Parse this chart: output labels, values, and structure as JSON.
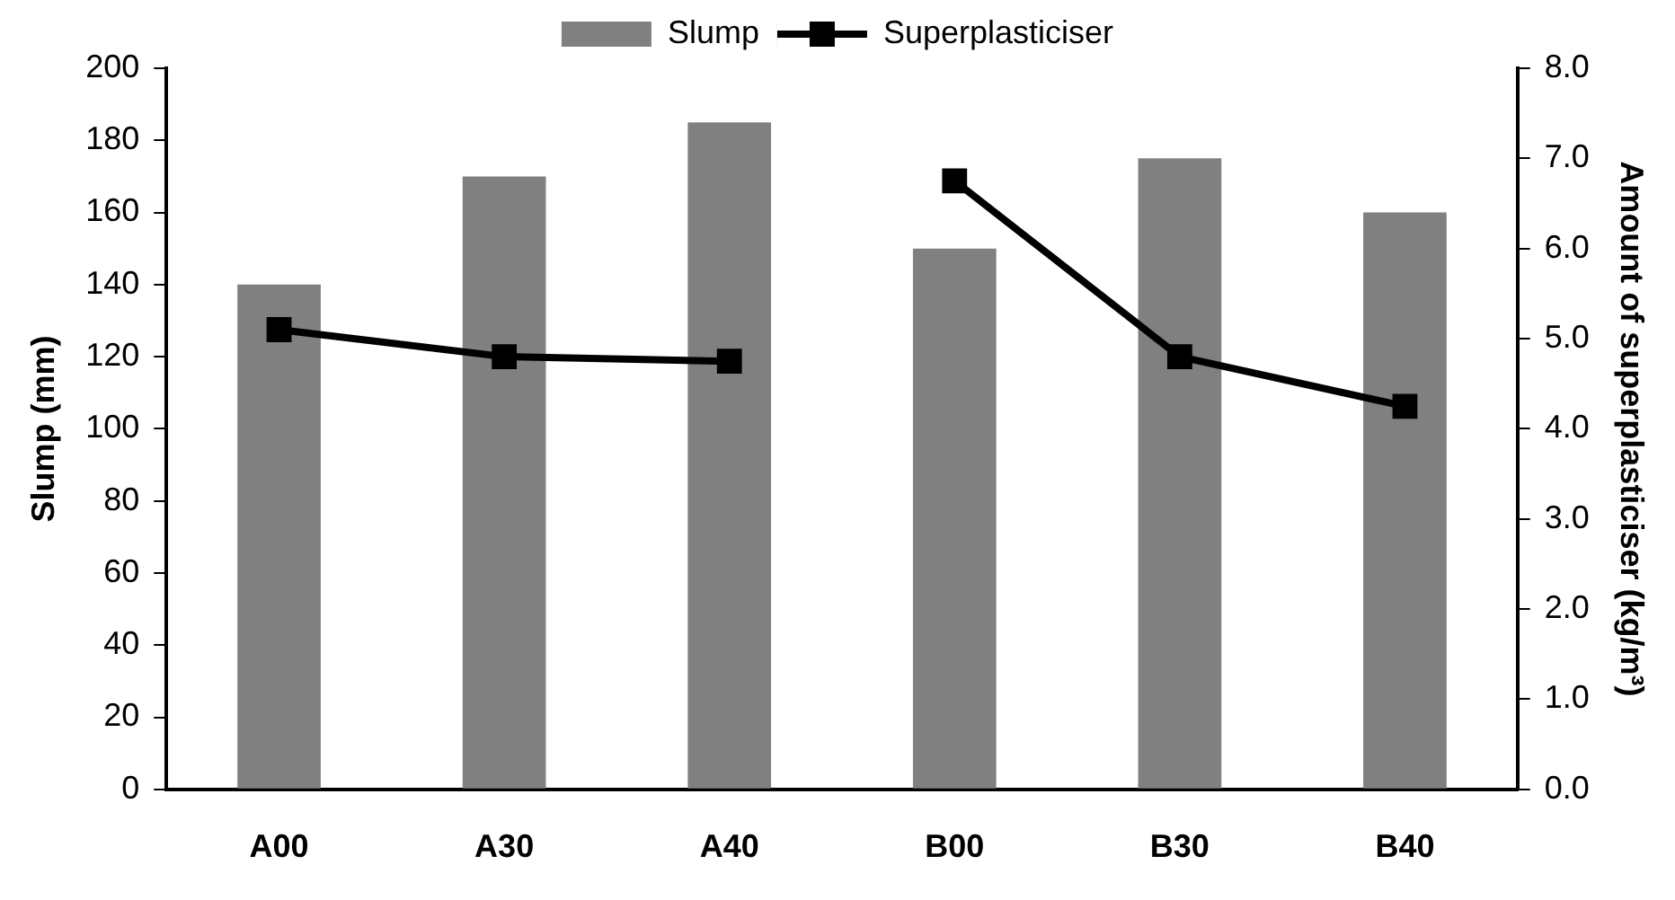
{
  "chart_data": {
    "type": "bar",
    "categories": [
      "A00",
      "A30",
      "A40",
      "B00",
      "B30",
      "B40"
    ],
    "series": [
      {
        "name": "Slump",
        "color": "#808080",
        "values": [
          140,
          170,
          185,
          150,
          175,
          160
        ]
      },
      {
        "name": "Superplasticiser",
        "type": "line",
        "axis": "y2",
        "color": "#000000",
        "values": [
          5.1,
          4.8,
          4.75,
          null,
          null,
          null
        ]
      },
      {
        "type": "line",
        "axis": "y2",
        "color": "#000000",
        "values": [
          null,
          null,
          null,
          6.75,
          4.8,
          4.25
        ]
      }
    ],
    "ylabel": "Slump (mm)",
    "y2label": "Amount of superplasticiser (kg/m³)",
    "ylim": [
      0,
      200
    ],
    "yticks": [
      0,
      20,
      40,
      60,
      80,
      100,
      120,
      140,
      160,
      180,
      200
    ],
    "y2lim": [
      0,
      8
    ],
    "y2ticks": [
      {
        "value": 0,
        "label": "0.0"
      },
      {
        "value": 1,
        "label": "1.0"
      },
      {
        "value": 2,
        "label": "2.0"
      },
      {
        "value": 3,
        "label": "3.0"
      },
      {
        "value": 4,
        "label": "4.0"
      },
      {
        "value": 5,
        "label": "5.0"
      },
      {
        "value": 6,
        "label": "6.0"
      },
      {
        "value": 7,
        "label": "7.0"
      },
      {
        "value": 8,
        "label": "8.0"
      }
    ],
    "grid": false,
    "legend": "top",
    "marker": "square",
    "line_style": "solid"
  }
}
